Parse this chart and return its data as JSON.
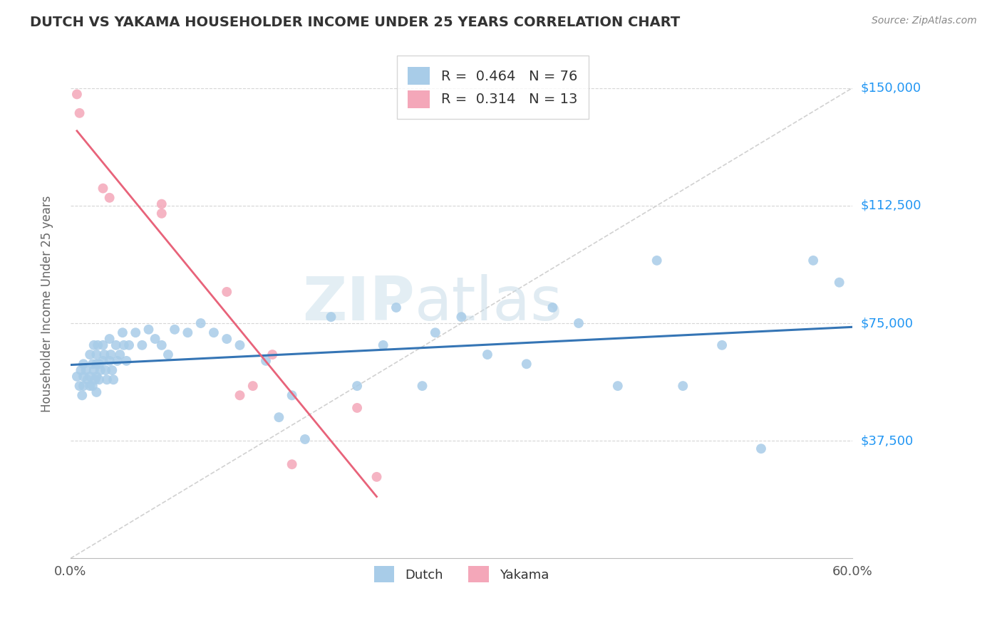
{
  "title": "DUTCH VS YAKAMA HOUSEHOLDER INCOME UNDER 25 YEARS CORRELATION CHART",
  "source": "Source: ZipAtlas.com",
  "ylabel": "Householder Income Under 25 years",
  "xlim": [
    0.0,
    0.6
  ],
  "ylim": [
    0,
    162500
  ],
  "ytick_values": [
    37500,
    75000,
    112500,
    150000
  ],
  "ytick_labels": [
    "$37,500",
    "$75,000",
    "$112,500",
    "$150,000"
  ],
  "dutch_R": "0.464",
  "dutch_N": "76",
  "yakama_R": "0.314",
  "yakama_N": "13",
  "dutch_color": "#a8cce8",
  "yakama_color": "#f4a7b9",
  "dutch_line_color": "#3575b5",
  "yakama_line_color": "#e8637a",
  "diag_color": "#cccccc",
  "watermark_zip": "ZIP",
  "watermark_atlas": "atlas",
  "dutch_x": [
    0.005,
    0.007,
    0.008,
    0.009,
    0.01,
    0.01,
    0.01,
    0.012,
    0.013,
    0.015,
    0.015,
    0.015,
    0.017,
    0.017,
    0.018,
    0.018,
    0.019,
    0.02,
    0.02,
    0.02,
    0.02,
    0.021,
    0.022,
    0.022,
    0.023,
    0.025,
    0.025,
    0.026,
    0.027,
    0.028,
    0.03,
    0.03,
    0.031,
    0.032,
    0.033,
    0.035,
    0.036,
    0.038,
    0.04,
    0.041,
    0.043,
    0.045,
    0.05,
    0.055,
    0.06,
    0.065,
    0.07,
    0.075,
    0.08,
    0.09,
    0.1,
    0.11,
    0.12,
    0.13,
    0.15,
    0.16,
    0.17,
    0.18,
    0.2,
    0.22,
    0.24,
    0.25,
    0.27,
    0.28,
    0.3,
    0.32,
    0.35,
    0.37,
    0.39,
    0.42,
    0.45,
    0.47,
    0.5,
    0.53,
    0.57,
    0.59
  ],
  "dutch_y": [
    58000,
    55000,
    60000,
    52000,
    58000,
    62000,
    55000,
    60000,
    57000,
    65000,
    58000,
    55000,
    62000,
    55000,
    68000,
    60000,
    57000,
    65000,
    62000,
    58000,
    53000,
    68000,
    62000,
    57000,
    60000,
    68000,
    63000,
    65000,
    60000,
    57000,
    70000,
    63000,
    65000,
    60000,
    57000,
    68000,
    63000,
    65000,
    72000,
    68000,
    63000,
    68000,
    72000,
    68000,
    73000,
    70000,
    68000,
    65000,
    73000,
    72000,
    75000,
    72000,
    70000,
    68000,
    63000,
    45000,
    52000,
    38000,
    77000,
    55000,
    68000,
    80000,
    55000,
    72000,
    77000,
    65000,
    62000,
    80000,
    75000,
    55000,
    95000,
    55000,
    68000,
    35000,
    95000,
    88000
  ],
  "yakama_x": [
    0.005,
    0.007,
    0.025,
    0.03,
    0.07,
    0.07,
    0.12,
    0.13,
    0.14,
    0.155,
    0.17,
    0.22,
    0.235
  ],
  "yakama_y": [
    148000,
    142000,
    118000,
    115000,
    113000,
    110000,
    85000,
    52000,
    55000,
    65000,
    30000,
    48000,
    26000
  ]
}
